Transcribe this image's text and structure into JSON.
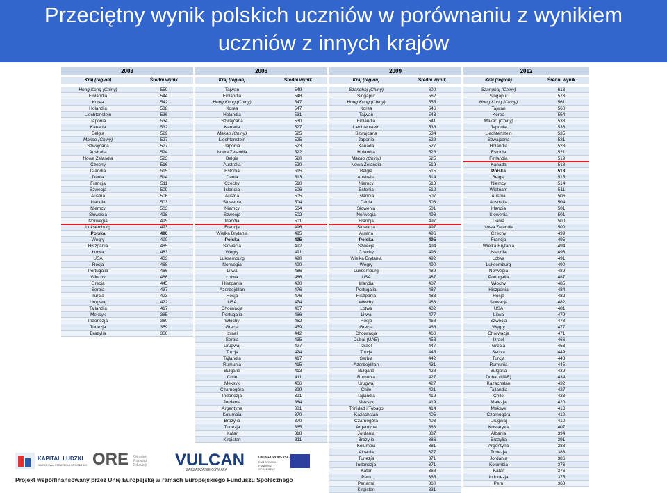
{
  "header": {
    "title": "Przeciętny wynik polskich uczniów w porównaniu z wynikiem uczniów z innych krajów"
  },
  "tables": [
    {
      "year": "2003",
      "headers": [
        "Kraj (region)",
        "Średni wynik"
      ],
      "bold_row": 23,
      "italic_rows": [
        0,
        8
      ],
      "red_line_after": 21,
      "rows": [
        [
          "Hong Kong (Chiny)",
          550
        ],
        [
          "Finlandia",
          544
        ],
        [
          "Korea",
          542
        ],
        [
          "Holandia",
          538
        ],
        [
          "Liechtenstein",
          536
        ],
        [
          "Japonia",
          534
        ],
        [
          "Kanada",
          532
        ],
        [
          "Belgia",
          529
        ],
        [
          "Makao (Chiny)",
          527
        ],
        [
          "Szwajcaria",
          527
        ],
        [
          "Australia",
          524
        ],
        [
          "Nowa Zelandia",
          523
        ],
        [
          "Czechy",
          516
        ],
        [
          "Islandia",
          515
        ],
        [
          "Dania",
          514
        ],
        [
          "Francja",
          511
        ],
        [
          "Szwecja",
          509
        ],
        [
          "Austria",
          506
        ],
        [
          "Irlandia",
          503
        ],
        [
          "Niemcy",
          503
        ],
        [
          "Słowacja",
          498
        ],
        [
          "Norwegia",
          495
        ],
        [
          "Luksemburg",
          493
        ],
        [
          "Polska",
          490
        ],
        [
          "Węgry",
          490
        ],
        [
          "Hiszpania",
          485
        ],
        [
          "Łotwa",
          483
        ],
        [
          "USA",
          483
        ],
        [
          "Rosja",
          468
        ],
        [
          "Portugalia",
          466
        ],
        [
          "Włochy",
          466
        ],
        [
          "Grecja",
          445
        ],
        [
          "Serbia",
          437
        ],
        [
          "Turcja",
          423
        ],
        [
          "Urugwaj",
          422
        ],
        [
          "Tajlandia",
          417
        ],
        [
          "Meksyk",
          385
        ],
        [
          "Indonezja",
          360
        ],
        [
          "Tunezja",
          359
        ],
        [
          "Brazylia",
          356
        ]
      ]
    },
    {
      "year": "2006",
      "headers": [
        "Kraj (region)",
        "Średni wynik"
      ],
      "bold_row": 24,
      "italic_rows": [
        2,
        7
      ],
      "red_line_after": 21,
      "rows": [
        [
          "Tajwan",
          549
        ],
        [
          "Finlandia",
          548
        ],
        [
          "Hong Kong (Chiny)",
          547
        ],
        [
          "Korea",
          547
        ],
        [
          "Holandia",
          531
        ],
        [
          "Szwajcaria",
          530
        ],
        [
          "Kanada",
          527
        ],
        [
          "Makao (Chiny)",
          525
        ],
        [
          "Liechtenstein",
          525
        ],
        [
          "Japonia",
          523
        ],
        [
          "Nowa Zelandia",
          522
        ],
        [
          "Belgia",
          520
        ],
        [
          "Australia",
          520
        ],
        [
          "Estonia",
          515
        ],
        [
          "Dania",
          513
        ],
        [
          "Czechy",
          510
        ],
        [
          "Islandia",
          506
        ],
        [
          "Austria",
          505
        ],
        [
          "Słowenia",
          504
        ],
        [
          "Niemcy",
          504
        ],
        [
          "Szwecja",
          502
        ],
        [
          "Irlandia",
          501
        ],
        [
          "Francja",
          496
        ],
        [
          "Wielka Brytania",
          495
        ],
        [
          "Polska",
          495
        ],
        [
          "Słowacja",
          492
        ],
        [
          "Węgry",
          491
        ],
        [
          "Luksemburg",
          490
        ],
        [
          "Norwegia",
          490
        ],
        [
          "Litwa",
          486
        ],
        [
          "Łotwa",
          486
        ],
        [
          "Hiszpania",
          480
        ],
        [
          "Azerbejdżan",
          476
        ],
        [
          "Rosja",
          476
        ],
        [
          "USA",
          474
        ],
        [
          "Chorwacja",
          467
        ],
        [
          "Portugalia",
          466
        ],
        [
          "Włochy",
          462
        ],
        [
          "Grecja",
          459
        ],
        [
          "Izrael",
          442
        ],
        [
          "Serbia",
          435
        ],
        [
          "Urugwaj",
          427
        ],
        [
          "Turcja",
          424
        ],
        [
          "Tajlandia",
          417
        ],
        [
          "Rumunia",
          415
        ],
        [
          "Bułgaria",
          413
        ],
        [
          "Chile",
          411
        ],
        [
          "Meksyk",
          406
        ],
        [
          "Czarnogóra",
          399
        ],
        [
          "Indonezja",
          391
        ],
        [
          "Jordania",
          384
        ],
        [
          "Argentyna",
          381
        ],
        [
          "Kolumbia",
          370
        ],
        [
          "Brazylia",
          370
        ],
        [
          "Tunezja",
          365
        ],
        [
          "Katar",
          318
        ],
        [
          "Kirgistan",
          311
        ]
      ]
    },
    {
      "year": "2009",
      "headers": [
        "Kraj (region)",
        "Średni wynik"
      ],
      "bold_row": 24,
      "italic_rows": [
        0,
        2,
        11
      ],
      "red_line_after": 21,
      "rows": [
        [
          "Szanghaj (Chiny)",
          600
        ],
        [
          "Singapur",
          562
        ],
        [
          "Hong Kong (Chiny)",
          555
        ],
        [
          "Korea",
          546
        ],
        [
          "Tajwan",
          543
        ],
        [
          "Finlandia",
          541
        ],
        [
          "Liechtenstein",
          536
        ],
        [
          "Szwajcaria",
          534
        ],
        [
          "Japonia",
          529
        ],
        [
          "Kanada",
          527
        ],
        [
          "Holandia",
          526
        ],
        [
          "Makao (Chiny)",
          525
        ],
        [
          "Nowa Zelandia",
          519
        ],
        [
          "Belgia",
          515
        ],
        [
          "Australia",
          514
        ],
        [
          "Niemcy",
          513
        ],
        [
          "Estonia",
          512
        ],
        [
          "Islandia",
          507
        ],
        [
          "Dania",
          503
        ],
        [
          "Słowenia",
          501
        ],
        [
          "Norwegia",
          498
        ],
        [
          "Francja",
          497
        ],
        [
          "Słowacja",
          497
        ],
        [
          "Austria",
          496
        ],
        [
          "Polska",
          495
        ],
        [
          "Szwecja",
          494
        ],
        [
          "Czechy",
          493
        ],
        [
          "Wielka Brytania",
          492
        ],
        [
          "Węgry",
          490
        ],
        [
          "Luksemburg",
          489
        ],
        [
          "USA",
          487
        ],
        [
          "Irlandia",
          487
        ],
        [
          "Portugalia",
          487
        ],
        [
          "Hiszpania",
          483
        ],
        [
          "Włochy",
          483
        ],
        [
          "Łotwa",
          482
        ],
        [
          "Litwa",
          477
        ],
        [
          "Rosja",
          468
        ],
        [
          "Grecja",
          466
        ],
        [
          "Chorwacja",
          460
        ],
        [
          "Dubai (UAE)",
          453
        ],
        [
          "Izrael",
          447
        ],
        [
          "Turcja",
          445
        ],
        [
          "Serbia",
          442
        ],
        [
          "Azerbejdżan",
          431
        ],
        [
          "Bułgaria",
          428
        ],
        [
          "Rumunia",
          427
        ],
        [
          "Urugwaj",
          427
        ],
        [
          "Chile",
          421
        ],
        [
          "Tajlandia",
          419
        ],
        [
          "Meksyk",
          419
        ],
        [
          "Trinidad i Tobago",
          414
        ],
        [
          "Kazachstan",
          405
        ],
        [
          "Czarnogóra",
          403
        ],
        [
          "Argentyna",
          388
        ],
        [
          "Jordania",
          387
        ],
        [
          "Brazylia",
          386
        ],
        [
          "Kolumbia",
          381
        ],
        [
          "Albania",
          377
        ],
        [
          "Tunezja",
          371
        ],
        [
          "Indonezja",
          371
        ],
        [
          "Katar",
          368
        ],
        [
          "Peru",
          365
        ],
        [
          "Panama",
          360
        ],
        [
          "Kirgistan",
          331
        ]
      ]
    },
    {
      "year": "2012",
      "headers": [
        "Kraj (region)",
        "Średni wynik"
      ],
      "bold_row": 13,
      "italic_rows": [
        0,
        2,
        5
      ],
      "red_line_after": 11,
      "rows": [
        [
          "Szanghaj (Chiny)",
          613
        ],
        [
          "Singapur",
          573
        ],
        [
          "Hong Kong (Chiny)",
          561
        ],
        [
          "Tajwan",
          560
        ],
        [
          "Korea",
          554
        ],
        [
          "Makao (Chiny)",
          538
        ],
        [
          "Japonia",
          536
        ],
        [
          "Liechtenstein",
          535
        ],
        [
          "Szwajcaria",
          531
        ],
        [
          "Holandia",
          523
        ],
        [
          "Estonia",
          521
        ],
        [
          "Finlandia",
          519
        ],
        [
          "Kanada",
          518
        ],
        [
          "Polska",
          518
        ],
        [
          "Belgia",
          515
        ],
        [
          "Niemcy",
          514
        ],
        [
          "Wietnam",
          511
        ],
        [
          "Austria",
          506
        ],
        [
          "Australia",
          504
        ],
        [
          "Irlandia",
          501
        ],
        [
          "Słowenia",
          501
        ],
        [
          "Dania",
          500
        ],
        [
          "Nowa Zelandia",
          500
        ],
        [
          "Czechy",
          499
        ],
        [
          "Francja",
          495
        ],
        [
          "Wielka Brytania",
          494
        ],
        [
          "Islandia",
          493
        ],
        [
          "Łotwa",
          491
        ],
        [
          "Luksemburg",
          490
        ],
        [
          "Norwegia",
          489
        ],
        [
          "Portugalia",
          487
        ],
        [
          "Włochy",
          485
        ],
        [
          "Hiszpania",
          484
        ],
        [
          "Rosja",
          482
        ],
        [
          "Słowacja",
          482
        ],
        [
          "USA",
          481
        ],
        [
          "Litwa",
          479
        ],
        [
          "Szwecja",
          478
        ],
        [
          "Węgry",
          477
        ],
        [
          "Chorwacja",
          471
        ],
        [
          "Izrael",
          466
        ],
        [
          "Grecja",
          453
        ],
        [
          "Serbia",
          449
        ],
        [
          "Turcja",
          448
        ],
        [
          "Rumunia",
          445
        ],
        [
          "Bułgaria",
          439
        ],
        [
          "Dubai (UAE)",
          434
        ],
        [
          "Kazachstan",
          432
        ],
        [
          "Tajlandia",
          427
        ],
        [
          "Chile",
          423
        ],
        [
          "Malezja",
          420
        ],
        [
          "Meksyk",
          413
        ],
        [
          "Czarnogóra",
          410
        ],
        [
          "Urugwaj",
          410
        ],
        [
          "Kostaryka",
          407
        ],
        [
          "Albania",
          394
        ],
        [
          "Brazylia",
          391
        ],
        [
          "Argentyna",
          388
        ],
        [
          "Tunezja",
          388
        ],
        [
          "Jordania",
          386
        ],
        [
          "Kolumbia",
          376
        ],
        [
          "Katar",
          376
        ],
        [
          "Indonezja",
          375
        ],
        [
          "Peru",
          368
        ]
      ]
    }
  ],
  "footer": {
    "kapital": "KAPITAŁ LUDZKI",
    "kapital_sub": "NARODOWA STRATEGIA SPÓJNOŚCI",
    "ore": "ORE",
    "ore_sub": "Ośrodek Rozwoju Edukacji",
    "vulcan": "VULCAN",
    "vulcan_sub": "ZARZĄDZANIE OŚWIATĄ",
    "ue": "UNIA EUROPEJSKA",
    "ue_sub": "EUROPEJSKI FUNDUSZ SPOŁECZNY",
    "note": "Projekt współfinansowany przez Unię Europejską w ramach Europejskiego Funduszu Społecznego"
  }
}
